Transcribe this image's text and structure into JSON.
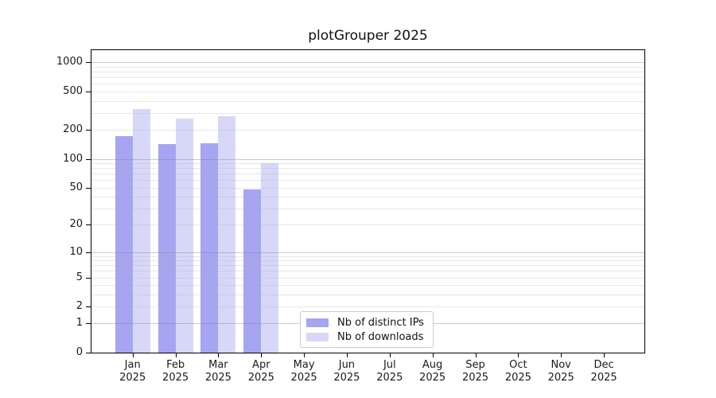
{
  "title": "plotGrouper 2025",
  "chart_data": {
    "type": "bar",
    "title": "plotGrouper 2025",
    "year": "2025",
    "categories": [
      "Jan",
      "Feb",
      "Mar",
      "Apr",
      "May",
      "Jun",
      "Jul",
      "Aug",
      "Sep",
      "Oct",
      "Nov",
      "Dec"
    ],
    "series": [
      {
        "name": "Nb of distinct IPs",
        "color": "#a5a5f1",
        "values": [
          172,
          143,
          146,
          48,
          0,
          0,
          0,
          0,
          0,
          0,
          0,
          0
        ]
      },
      {
        "name": "Nb of downloads",
        "color": "#d7d8f8",
        "values": [
          327,
          263,
          276,
          90,
          0,
          0,
          0,
          0,
          0,
          0,
          0,
          0
        ]
      }
    ],
    "yscale": "log1p",
    "yticks": [
      0,
      1,
      2,
      5,
      10,
      20,
      50,
      100,
      200,
      500,
      1000
    ],
    "ylim": [
      0,
      1340
    ],
    "xlabel": "",
    "ylabel": "",
    "grid": "horizontal major+minor",
    "legend_position": "lower center"
  },
  "legend": {
    "items": [
      {
        "label": "Nb of distinct IPs",
        "color": "#a5a5f1"
      },
      {
        "label": "Nb of downloads",
        "color": "#d7d8f8"
      }
    ]
  },
  "colors": {
    "background": "#ffffff",
    "axis": "#000000",
    "grid_major": "#c9c9c9",
    "grid_minor": "#e7e7e7",
    "text": "#1a1a1a"
  }
}
